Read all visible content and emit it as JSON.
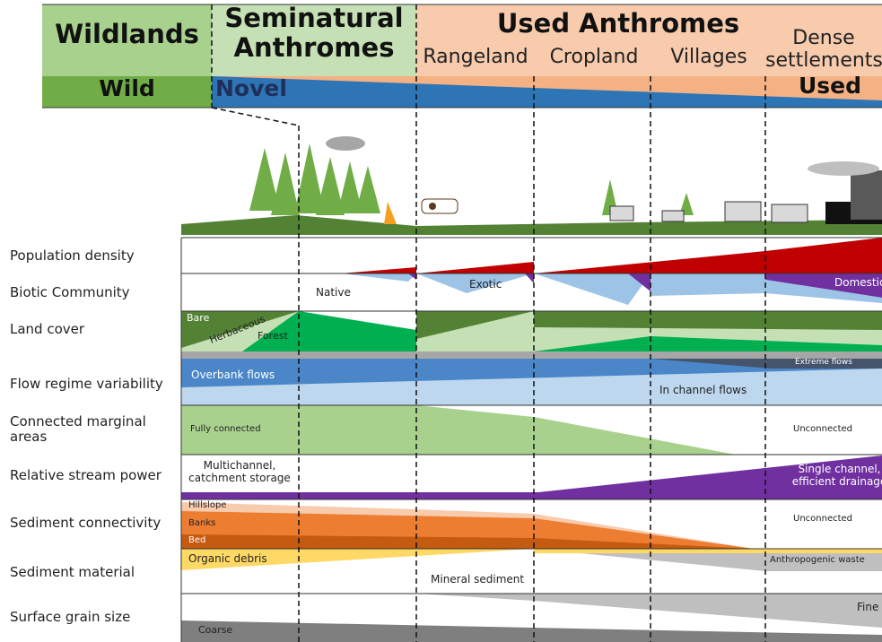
{
  "header": {
    "groups": [
      "Wildlands",
      "Seminatural Anthromes",
      "Used Anthromes"
    ],
    "subgroups": [
      "Rangeland",
      "Cropland",
      "Villages",
      "Dense settlements"
    ],
    "gradient": [
      "Wild",
      "Novel",
      "Used"
    ]
  },
  "rows": [
    {
      "label": "Population density",
      "notes": []
    },
    {
      "label": "Biotic Community",
      "notes": [
        "Native",
        "Exotic",
        "Domestic"
      ]
    },
    {
      "label": "Land cover",
      "notes": [
        "Bare",
        "Herbaceous",
        "Forest"
      ]
    },
    {
      "label": "Flow regime variability",
      "notes": [
        "Extreme flows",
        "Overbank flows",
        "In channel flows"
      ]
    },
    {
      "label": "Connected marginal areas",
      "notes": [
        "Fully connected",
        "Unconnected"
      ]
    },
    {
      "label": "Relative stream power",
      "notes": [
        "Multichannel, catchment storage",
        "Single channel, efficient drainage"
      ]
    },
    {
      "label": "Sediment connectivity",
      "notes": [
        "Hillslope",
        "Banks",
        "Bed",
        "Unconnected"
      ]
    },
    {
      "label": "Sediment material",
      "notes": [
        "Organic debris",
        "Mineral sediment",
        "Anthropogenic waste"
      ]
    },
    {
      "label": "Surface grain size",
      "notes": [
        "Fine",
        "Coarse"
      ]
    }
  ]
}
